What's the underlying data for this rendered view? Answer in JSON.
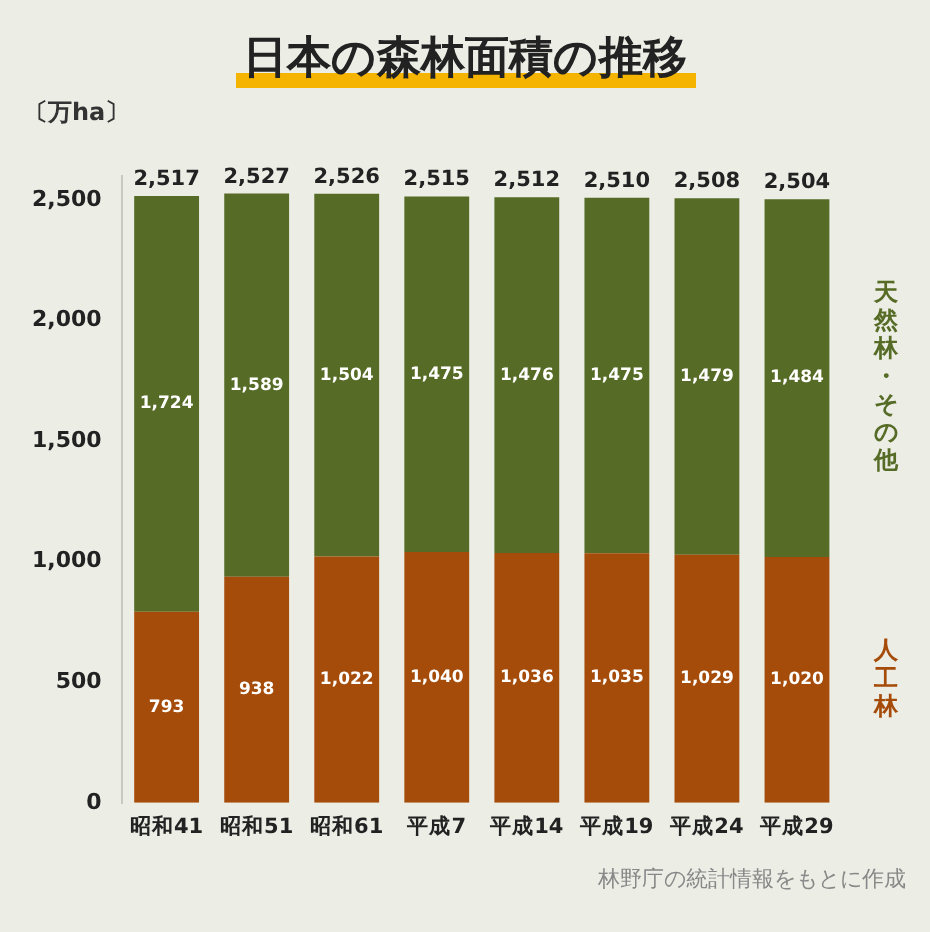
{
  "chart_data": {
    "type": "bar",
    "title": "日本の森林面積の推移",
    "ylabel": "〔万ha〕",
    "categories": [
      "昭和41",
      "昭和51",
      "昭和61",
      "平成7",
      "平成14",
      "平成19",
      "平成24",
      "平成29"
    ],
    "series": [
      {
        "name": "人工林",
        "color": "#a64c0a",
        "values": [
          793,
          938,
          1022,
          1040,
          1036,
          1035,
          1029,
          1020
        ],
        "value_labels": [
          "793",
          "938",
          "1,022",
          "1,040",
          "1,036",
          "1,035",
          "1,029",
          "1,020"
        ]
      },
      {
        "name": "天然林・その他",
        "color": "#566b26",
        "values": [
          1724,
          1589,
          1504,
          1475,
          1476,
          1475,
          1479,
          1484
        ],
        "value_labels": [
          "1,724",
          "1,589",
          "1,504",
          "1,475",
          "1,476",
          "1,475",
          "1,479",
          "1,484"
        ]
      }
    ],
    "stacked": true,
    "totals": [
      "2,517",
      "2,527",
      "2,526",
      "2,515",
      "2,512",
      "2,510",
      "2,508",
      "2,504"
    ],
    "ylim": [
      0,
      2600
    ],
    "yticks": [
      0,
      {
        "value": 500,
        "label": "500"
      },
      {
        "value": 1000,
        "label": "1,000"
      },
      {
        "value": 1500,
        "label": "1,500"
      },
      {
        "value": 2000,
        "label": "2,000"
      },
      {
        "value": 2500,
        "label": "2,500"
      }
    ],
    "grid": false,
    "legend": false,
    "annotations": [
      "林野庁の統計情報をもとに作成"
    ]
  }
}
